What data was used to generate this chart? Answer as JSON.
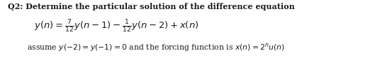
{
  "title_line": "Q2: Determine the particular solution of the difference equation",
  "bg_color": "#ffffff",
  "text_color": "#1a1a1a",
  "title_fontsize": 8.0,
  "eq_fontsize": 9.5,
  "assume_fontsize": 7.8,
  "fig_width": 5.36,
  "fig_height": 0.83,
  "dpi": 100
}
